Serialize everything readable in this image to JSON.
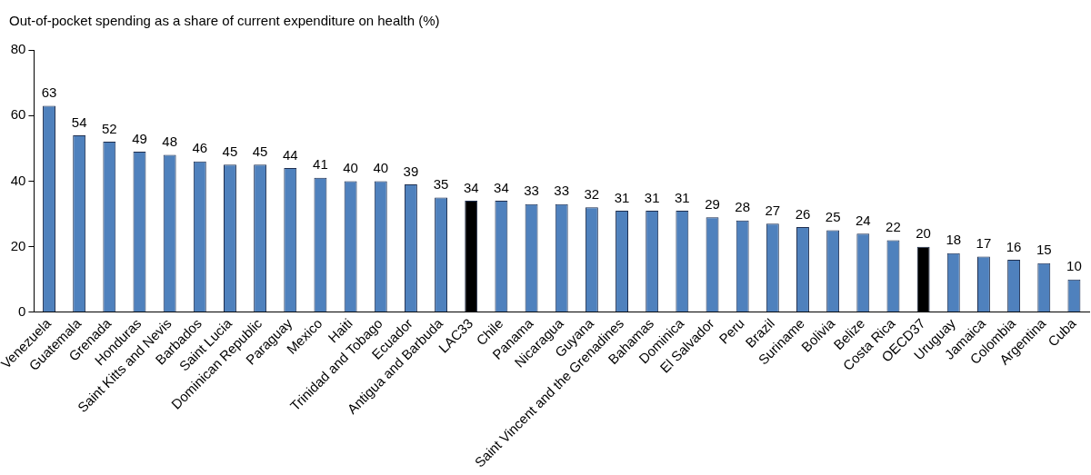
{
  "chart_data": {
    "type": "bar",
    "ylabel": "Out-of-pocket spending as a share of current expenditure on health (%)",
    "categories": [
      "Venezuela",
      "Guatemala",
      "Grenada",
      "Honduras",
      "Saint Kitts and Nevis",
      "Barbados",
      "Saint Lucia",
      "Dominican Republic",
      "Paraguay",
      "Mexico",
      "Haiti",
      "Trinidad and Tobago",
      "Ecuador",
      "Antigua and Barbuda",
      "LAC33",
      "Chile",
      "Panama",
      "Nicaragua",
      "Guyana",
      "Saint Vincent and the Grenadines",
      "Bahamas",
      "Dominica",
      "El Salvador",
      "Peru",
      "Brazil",
      "Suriname",
      "Bolivia",
      "Belize",
      "Costa Rica",
      "OECD37",
      "Uruguay",
      "Jamaica",
      "Colombia",
      "Argentina",
      "Cuba"
    ],
    "values": [
      63,
      54,
      52,
      49,
      48,
      46,
      45,
      45,
      44,
      41,
      40,
      40,
      39,
      35,
      34,
      34,
      33,
      33,
      32,
      31,
      31,
      31,
      29,
      28,
      27,
      26,
      25,
      24,
      22,
      20,
      18,
      17,
      16,
      15,
      10
    ],
    "colors": [
      "#4f81bd",
      "#4f81bd",
      "#4f81bd",
      "#4f81bd",
      "#4f81bd",
      "#4f81bd",
      "#4f81bd",
      "#4f81bd",
      "#4f81bd",
      "#4f81bd",
      "#4f81bd",
      "#4f81bd",
      "#4f81bd",
      "#4f81bd",
      "#000000",
      "#4f81bd",
      "#4f81bd",
      "#4f81bd",
      "#4f81bd",
      "#4f81bd",
      "#4f81bd",
      "#4f81bd",
      "#4f81bd",
      "#4f81bd",
      "#4f81bd",
      "#4f81bd",
      "#4f81bd",
      "#4f81bd",
      "#4f81bd",
      "#000000",
      "#4f81bd",
      "#4f81bd",
      "#4f81bd",
      "#4f81bd",
      "#4f81bd"
    ],
    "ylim": [
      0,
      80
    ],
    "yticks": [
      0,
      20,
      40,
      60,
      80
    ],
    "grid": false,
    "legend": false,
    "data_labels": true
  }
}
